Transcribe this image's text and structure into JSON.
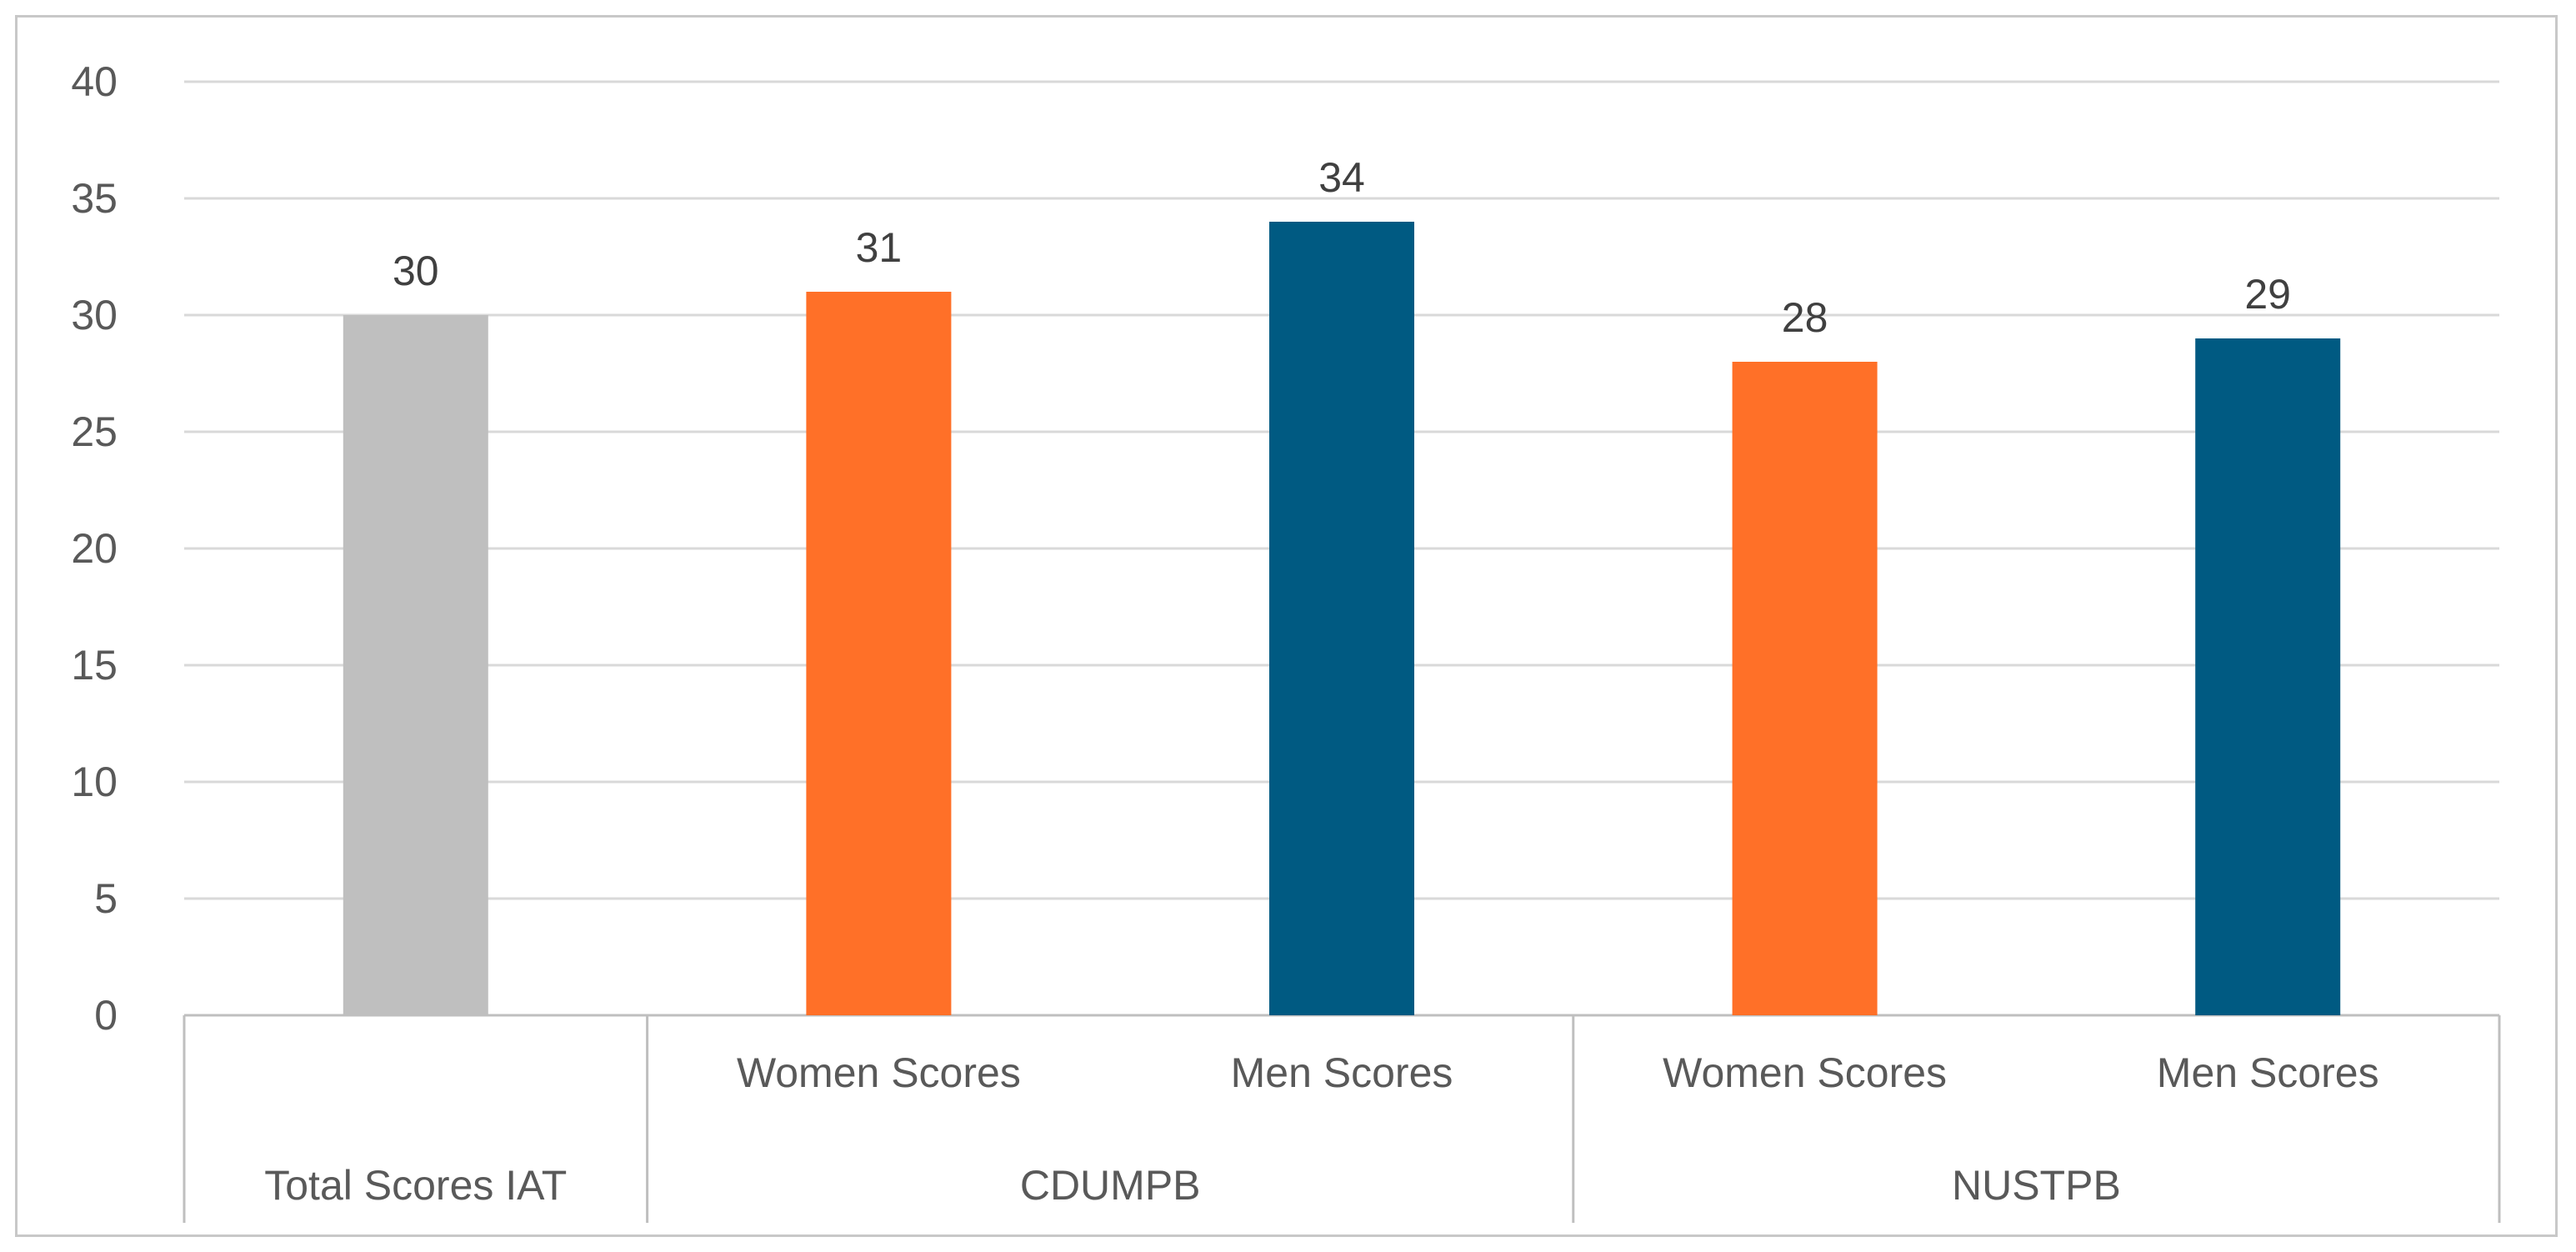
{
  "chart_data": {
    "type": "bar",
    "title": "",
    "xlabel": "",
    "ylabel": "",
    "ylim": [
      0,
      40
    ],
    "ytick_step": 5,
    "grid": true,
    "legend": "none",
    "categories": [
      "Women Scores",
      "Men Scores",
      "Women Scores",
      "Men Scores"
    ],
    "groups": [
      {
        "label": "Total Scores IAT",
        "bars": [
          {
            "label": "",
            "value": 30,
            "color": "#bfbfbf"
          }
        ]
      },
      {
        "label": "CDUMPB",
        "bars": [
          {
            "label": "Women Scores",
            "value": 31,
            "color": "#ff7028"
          },
          {
            "label": "Men Scores",
            "value": 34,
            "color": "#005a82"
          }
        ]
      },
      {
        "label": "NUSTPB",
        "bars": [
          {
            "label": "Women Scores",
            "value": 28,
            "color": "#ff7028"
          },
          {
            "label": "Men Scores",
            "value": 29,
            "color": "#005a82"
          }
        ]
      }
    ]
  },
  "colors": {
    "gray": "#bfbfbf",
    "orange": "#ff7028",
    "blue": "#005a82",
    "grid": "#d9d9d9",
    "text": "#595959"
  }
}
